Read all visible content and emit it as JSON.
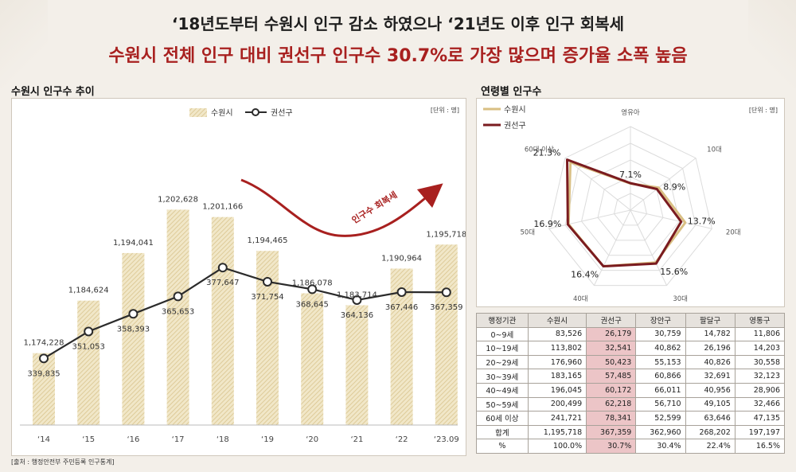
{
  "header": {
    "title_main": "‘18년도부터 수원시 인구 감소 하였으나 ‘21년도 이후 인구 회복세",
    "title_sub": "수원시 전체 인구 대비 권선구 인구수 30.7%로 가장 많으며 증가율 소폭 높음"
  },
  "left_section": {
    "title": "수원시 인구수 추이",
    "unit": "[단위 : 명]",
    "annotation": "인구수 회복세"
  },
  "right_section": {
    "title": "연령별 인구수",
    "unit": "[단위 : 명]"
  },
  "source": "[출처 : 행정안전부 주민등록 인구통계]",
  "colors": {
    "bar": "#e2d2a4",
    "line": "#2b2b2b",
    "accent_red": "#a8201f",
    "suwon_radar": "#d9bf83",
    "gwonseon_radar": "#7a1b1f"
  },
  "chart_data": [
    {
      "type": "bar",
      "categories": [
        "‘14",
        "‘15",
        "‘16",
        "‘17",
        "‘18",
        "‘19",
        "‘20",
        "‘21",
        "‘22",
        "‘23.09"
      ],
      "series": [
        {
          "name": "수원시",
          "type": "bar",
          "values": [
            1174228,
            1184624,
            1194041,
            1202628,
            1201166,
            1194465,
            1186078,
            1183714,
            1190964,
            1195718
          ],
          "labels": [
            "1,174,228",
            "1,184,624",
            "1,194,041",
            "1,202,628",
            "1,201,166",
            "1,194,465",
            "1,186,078",
            "1,183,714",
            "1,190,964",
            "1,195,718"
          ]
        },
        {
          "name": "권선구",
          "type": "line",
          "values": [
            339835,
            351053,
            358393,
            365653,
            377647,
            371754,
            368645,
            364136,
            367446,
            367359
          ],
          "labels": [
            "339,835",
            "351,053",
            "358,393",
            "365,653",
            "377,647",
            "371,754",
            "368,645",
            "364,136",
            "367,446",
            "367,359"
          ]
        }
      ],
      "legend": "top-center"
    },
    {
      "type": "radar",
      "axes": [
        "영유아",
        "10대",
        "20대",
        "30대",
        "40대",
        "50대",
        "60대 이상"
      ],
      "series": [
        {
          "name": "수원시",
          "values": [
            7.0,
            9.5,
            14.8,
            15.3,
            16.4,
            16.7,
            20.2
          ]
        },
        {
          "name": "권선구",
          "values": [
            7.1,
            8.9,
            13.7,
            15.6,
            16.4,
            16.9,
            21.3
          ]
        }
      ],
      "point_labels": [
        "7.1%",
        "8.9%",
        "13.7%",
        "15.6%",
        "16.4%",
        "16.9%",
        "21.3%"
      ],
      "legend": "top-left"
    },
    {
      "type": "table",
      "columns": [
        "행정기관",
        "수원시",
        "권선구",
        "장안구",
        "팔달구",
        "영통구"
      ],
      "rows": [
        [
          "0~9세",
          "83,526",
          "26,179",
          "30,759",
          "14,782",
          "11,806"
        ],
        [
          "10~19세",
          "113,802",
          "32,541",
          "40,862",
          "26,196",
          "14,203"
        ],
        [
          "20~29세",
          "176,960",
          "50,423",
          "55,153",
          "40,826",
          "30,558"
        ],
        [
          "30~39세",
          "183,165",
          "57,485",
          "60,866",
          "32,691",
          "32,123"
        ],
        [
          "40~49세",
          "196,045",
          "60,172",
          "66,011",
          "40,956",
          "28,906"
        ],
        [
          "50~59세",
          "200,499",
          "62,218",
          "56,710",
          "49,105",
          "32,466"
        ],
        [
          "60세 이상",
          "241,721",
          "78,341",
          "52,599",
          "63,646",
          "47,135"
        ],
        [
          "합계",
          "1,195,718",
          "367,359",
          "362,960",
          "268,202",
          "197,197"
        ],
        [
          "%",
          "100.0%",
          "30.7%",
          "30.4%",
          "22.4%",
          "16.5%"
        ]
      ],
      "highlight_column": 2
    }
  ]
}
